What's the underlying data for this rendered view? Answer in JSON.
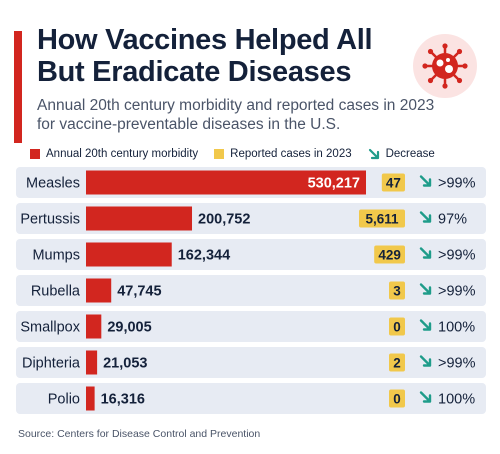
{
  "header": {
    "title": "How Vaccines Helped All But Eradicate Diseases",
    "subtitle": "Annual 20th century morbidity and reported cases in 2023 for vaccine-preventable diseases in the U.S."
  },
  "legend": {
    "morbidity": "Annual 20th century morbidity",
    "cases": "Reported cases in 2023",
    "decrease": "Decrease"
  },
  "source": "Source: Centers for Disease Control and Prevention",
  "colors": {
    "bar": "#d2261f",
    "case_badge": "#f1c84b",
    "decrease_arrow": "#1f9c8a",
    "row_band": "#e7ebf3",
    "title": "#14213a"
  },
  "icons": {
    "header": "virus-icon",
    "decrease": "arrow-down-right-icon"
  },
  "chart_data": {
    "type": "bar",
    "orientation": "horizontal",
    "categories": [
      "Measles",
      "Pertussis",
      "Mumps",
      "Rubella",
      "Smallpox",
      "Diphteria",
      "Polio"
    ],
    "series": [
      {
        "name": "Annual 20th century morbidity",
        "values": [
          530217,
          200752,
          162344,
          47745,
          29005,
          21053,
          16316
        ]
      },
      {
        "name": "Reported cases in 2023",
        "values": [
          47,
          5611,
          429,
          3,
          0,
          2,
          0
        ]
      }
    ],
    "value_labels": [
      "530,217",
      "200,752",
      "162,344",
      "47,745",
      "29,005",
      "21,053",
      "16,316"
    ],
    "case_labels": [
      "47",
      "5,611",
      "429",
      "3",
      "0",
      "2",
      "0"
    ],
    "decrease_labels": [
      ">99%",
      "97%",
      ">99%",
      ">99%",
      "100%",
      ">99%",
      "100%"
    ],
    "xlim": [
      0,
      530217
    ],
    "grid": false,
    "legend_position": "top"
  }
}
